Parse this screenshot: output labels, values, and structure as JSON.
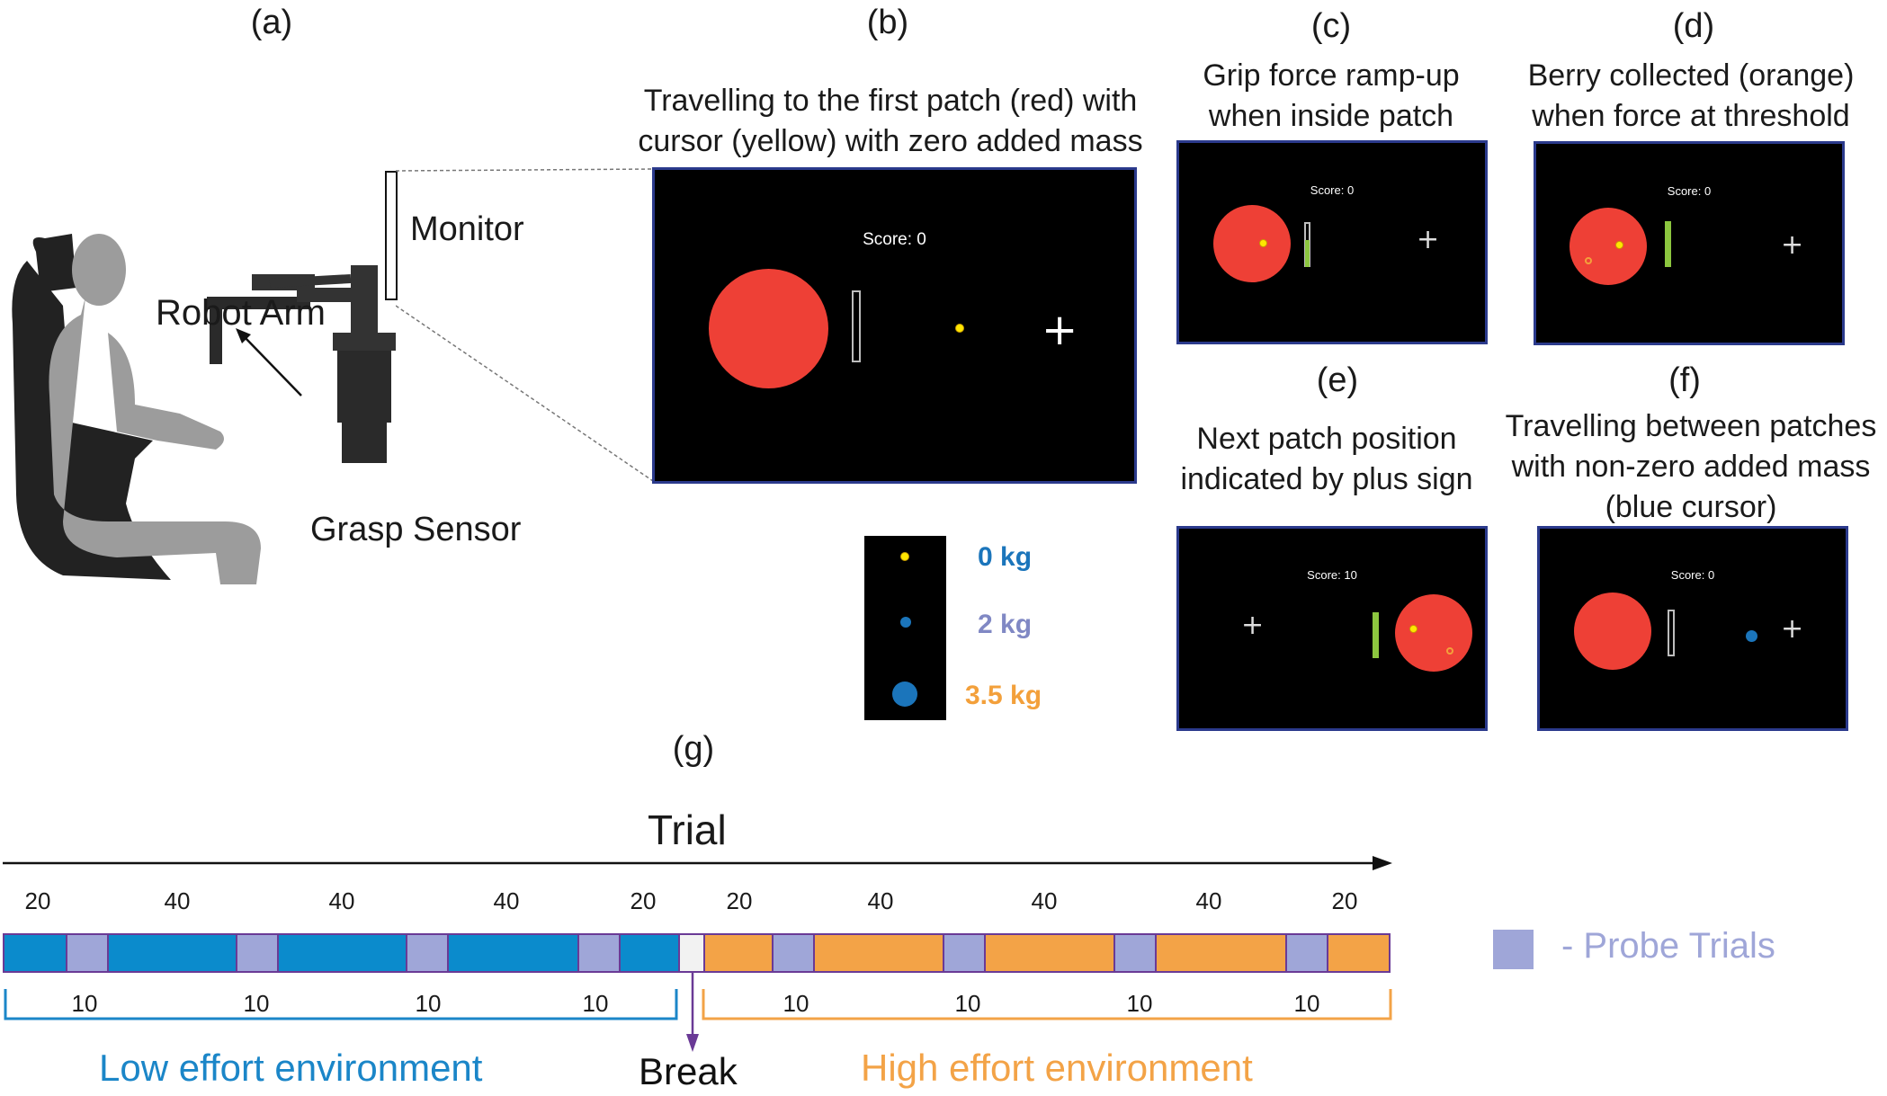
{
  "panels": {
    "a": {
      "letter": "(a)",
      "monitor_label": "Monitor",
      "robot_label": "Robot Arm",
      "sensor_label": "Grasp Sensor"
    },
    "b": {
      "letter": "(b)",
      "caption_line1": "Travelling to the first patch (red) with",
      "caption_line2": "cursor (yellow) with zero added mass",
      "score": "Score: 0"
    },
    "c": {
      "letter": "(c)",
      "caption_line1": "Grip force ramp-up",
      "caption_line2": "when inside patch",
      "score": "Score: 0"
    },
    "d": {
      "letter": "(d)",
      "caption_line1": "Berry collected (orange)",
      "caption_line2": "when force at threshold",
      "score": "Score: 0"
    },
    "e": {
      "letter": "(e)",
      "caption_line1": "Next patch position",
      "caption_line2": "indicated by plus sign",
      "score": "Score: 10"
    },
    "f": {
      "letter": "(f)",
      "caption_line1": "Travelling between patches",
      "caption_line2": "with non-zero added mass",
      "caption_line3": "(blue cursor)",
      "score": "Score: 0"
    },
    "g": {
      "letter": "(g)"
    }
  },
  "mass_legend": [
    {
      "label": "0 kg",
      "color": "#1b75bb"
    },
    {
      "label": "2 kg",
      "color": "#8088c4"
    },
    {
      "label": "3.5 kg",
      "color": "#f3a03b"
    }
  ],
  "timeline": {
    "axis_label": "Trial",
    "top_counts": [
      "20",
      "40",
      "40",
      "40",
      "20",
      "20",
      "40",
      "40",
      "40",
      "20"
    ],
    "probe_counts": [
      "10",
      "10",
      "10",
      "10",
      "10",
      "10",
      "10",
      "10"
    ],
    "probe_legend": "- Probe Trials",
    "break_label": "Break",
    "low_env_label": "Low effort environment",
    "high_env_label": "High effort environment",
    "colors": {
      "low": "#0b8bcc",
      "high": "#f3a347",
      "probe": "#9fa6d8",
      "break": "#f2f2f2",
      "low_text": "#1b86c8",
      "high_text": "#f3a347",
      "break_arrow": "#6a3a96"
    }
  }
}
